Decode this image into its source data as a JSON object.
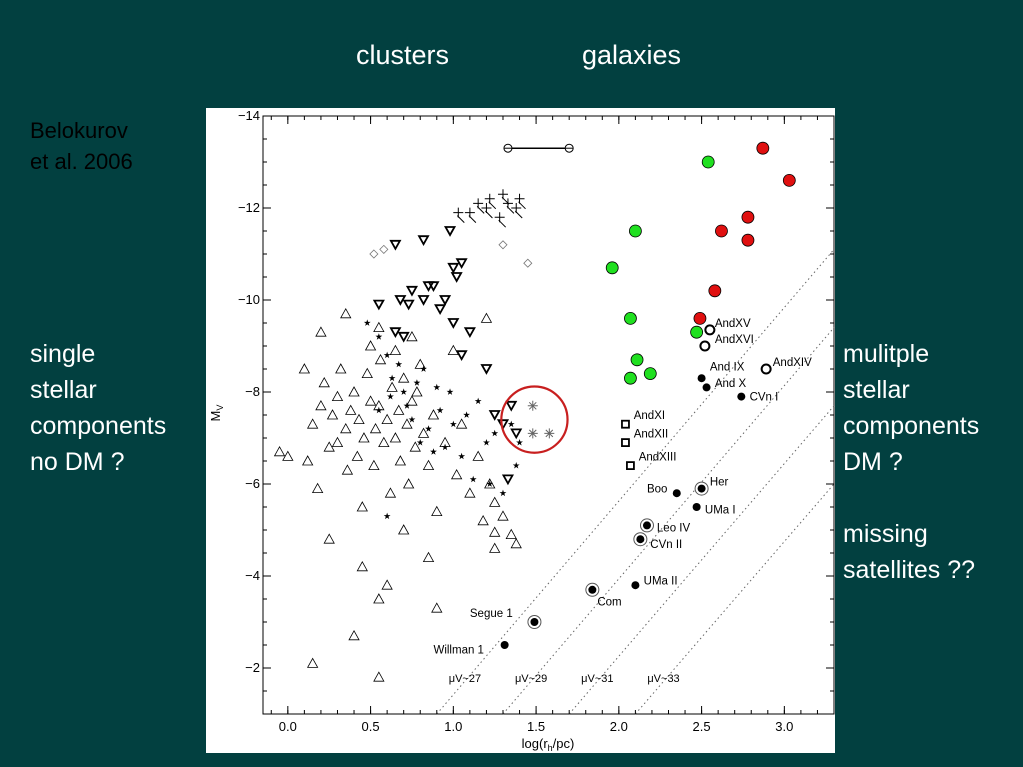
{
  "slide": {
    "headers": {
      "clusters": "clusters",
      "galaxies": "galaxies"
    },
    "citation": [
      "Belokurov",
      "et al. 2006"
    ],
    "left_note": [
      "single",
      "stellar",
      "components",
      "no DM ?"
    ],
    "right_note": [
      "mulitple",
      "stellar",
      "components",
      "DM ?",
      "",
      "missing",
      "satellites ??"
    ]
  },
  "chart_data": {
    "type": "scatter",
    "xlabel": "log(r_h/pc)",
    "ylabel": "M_V",
    "xlim": [
      -0.15,
      3.3
    ],
    "ylim": [
      -1.0,
      -14.0
    ],
    "x_ticks": [
      0.0,
      0.5,
      1.0,
      1.5,
      2.0,
      2.5,
      3.0
    ],
    "x_tick_labels": [
      "0.0",
      "0.5",
      "1.0",
      "1.5",
      "2.0",
      "2.5",
      "3.0"
    ],
    "y_ticks": [
      -2,
      -4,
      -6,
      -8,
      -10,
      -12,
      -14
    ],
    "y_tick_labels": [
      "−2",
      "−4",
      "−6",
      "−8",
      "−10",
      "−12",
      "−14"
    ],
    "colors": {
      "red": "#e01010",
      "green": "#20e020",
      "emphasis": "#c81f1f"
    },
    "surface_brightness_lines": [
      {
        "label": "μV~27",
        "points": [
          [
            0.9,
            -1.0
          ],
          [
            3.3,
            -11.1
          ]
        ]
      },
      {
        "label": "μV~29",
        "points": [
          [
            1.3,
            -1.0
          ],
          [
            3.3,
            -9.4
          ]
        ]
      },
      {
        "label": "μV~31",
        "points": [
          [
            1.7,
            -1.0
          ],
          [
            3.3,
            -7.7
          ]
        ]
      },
      {
        "label": "μV~33",
        "points": [
          [
            2.1,
            -1.0
          ],
          [
            3.3,
            -6.0
          ]
        ]
      }
    ],
    "sb_labels": [
      {
        "text": "μV~27",
        "x": 1.07,
        "y": -1.7
      },
      {
        "text": "μV~29",
        "x": 1.47,
        "y": -1.7
      },
      {
        "text": "μV~31",
        "x": 1.87,
        "y": -1.7
      },
      {
        "text": "μV~33",
        "x": 2.27,
        "y": -1.7
      }
    ],
    "series": [
      {
        "marker": "triangle",
        "points": [
          [
            -0.05,
            -6.7
          ],
          [
            0.0,
            -6.6
          ],
          [
            0.12,
            -6.5
          ],
          [
            0.15,
            -7.3
          ],
          [
            0.18,
            -5.9
          ],
          [
            0.2,
            -7.7
          ],
          [
            0.22,
            -8.2
          ],
          [
            0.25,
            -6.8
          ],
          [
            0.27,
            -7.5
          ],
          [
            0.3,
            -6.9
          ],
          [
            0.3,
            -7.9
          ],
          [
            0.32,
            -8.5
          ],
          [
            0.35,
            -7.2
          ],
          [
            0.36,
            -6.3
          ],
          [
            0.38,
            -7.6
          ],
          [
            0.4,
            -8.0
          ],
          [
            0.42,
            -6.6
          ],
          [
            0.43,
            -7.4
          ],
          [
            0.45,
            -5.5
          ],
          [
            0.46,
            -7.0
          ],
          [
            0.48,
            -8.4
          ],
          [
            0.5,
            -7.8
          ],
          [
            0.52,
            -6.4
          ],
          [
            0.53,
            -7.2
          ],
          [
            0.55,
            -7.7
          ],
          [
            0.56,
            -8.7
          ],
          [
            0.58,
            -6.9
          ],
          [
            0.6,
            -7.4
          ],
          [
            0.62,
            -5.8
          ],
          [
            0.63,
            -8.1
          ],
          [
            0.65,
            -7.0
          ],
          [
            0.67,
            -7.6
          ],
          [
            0.68,
            -6.5
          ],
          [
            0.7,
            -8.3
          ],
          [
            0.72,
            -7.3
          ],
          [
            0.73,
            -6.0
          ],
          [
            0.75,
            -7.8
          ],
          [
            0.77,
            -6.8
          ],
          [
            0.8,
            -8.6
          ],
          [
            0.82,
            -7.1
          ],
          [
            0.85,
            -6.4
          ],
          [
            0.88,
            -7.5
          ],
          [
            0.9,
            -5.4
          ],
          [
            0.95,
            -6.9
          ],
          [
            1.0,
            -8.9
          ],
          [
            1.02,
            -6.2
          ],
          [
            1.05,
            -7.3
          ],
          [
            1.1,
            -5.8
          ],
          [
            1.15,
            -6.6
          ],
          [
            1.18,
            -5.2
          ],
          [
            1.22,
            -6.0
          ],
          [
            1.25,
            -5.6
          ],
          [
            1.3,
            -5.3
          ],
          [
            1.35,
            -4.9
          ],
          [
            1.38,
            -4.7
          ],
          [
            0.1,
            -8.5
          ],
          [
            0.2,
            -9.3
          ],
          [
            0.35,
            -9.7
          ],
          [
            0.5,
            -9.0
          ],
          [
            0.55,
            -9.4
          ],
          [
            0.65,
            -8.9
          ],
          [
            0.75,
            -9.2
          ],
          [
            1.2,
            -9.6
          ],
          [
            0.45,
            -4.2
          ],
          [
            0.55,
            -3.5
          ],
          [
            0.85,
            -4.4
          ],
          [
            0.9,
            -3.3
          ],
          [
            0.4,
            -2.7
          ],
          [
            0.15,
            -2.1
          ],
          [
            0.55,
            -1.8
          ],
          [
            1.25,
            -4.6
          ],
          [
            1.25,
            -4.95
          ],
          [
            0.7,
            -5.0
          ],
          [
            0.25,
            -4.8
          ],
          [
            0.6,
            -3.8
          ],
          [
            0.78,
            -8.0
          ]
        ]
      },
      {
        "marker": "inverted-triangle",
        "points": [
          [
            0.65,
            -11.2
          ],
          [
            0.82,
            -11.3
          ],
          [
            0.98,
            -11.5
          ],
          [
            1.0,
            -10.7
          ],
          [
            1.02,
            -10.5
          ],
          [
            1.05,
            -10.8
          ],
          [
            0.55,
            -9.9
          ],
          [
            0.68,
            -10.0
          ],
          [
            0.73,
            -9.9
          ],
          [
            0.75,
            -10.2
          ],
          [
            0.82,
            -10.0
          ],
          [
            0.88,
            -10.3
          ],
          [
            0.95,
            -10.0
          ],
          [
            0.92,
            -9.8
          ],
          [
            1.0,
            -9.5
          ],
          [
            1.1,
            -9.3
          ],
          [
            0.65,
            -9.3
          ],
          [
            0.7,
            -9.2
          ],
          [
            1.05,
            -8.8
          ],
          [
            1.2,
            -8.5
          ],
          [
            1.3,
            -7.3
          ],
          [
            1.25,
            -7.5
          ],
          [
            1.35,
            -7.7
          ],
          [
            1.33,
            -6.1
          ],
          [
            1.38,
            -7.1
          ],
          [
            0.85,
            -10.3
          ]
        ]
      },
      {
        "marker": "star",
        "points": [
          [
            0.48,
            -9.5
          ],
          [
            0.55,
            -9.2
          ],
          [
            0.6,
            -8.8
          ],
          [
            0.63,
            -8.3
          ],
          [
            0.67,
            -8.6
          ],
          [
            0.7,
            -8.0
          ],
          [
            0.72,
            -7.7
          ],
          [
            0.75,
            -7.4
          ],
          [
            0.78,
            -8.2
          ],
          [
            0.8,
            -6.9
          ],
          [
            0.82,
            -8.5
          ],
          [
            0.85,
            -7.2
          ],
          [
            0.88,
            -6.7
          ],
          [
            0.9,
            -8.1
          ],
          [
            0.92,
            -7.6
          ],
          [
            0.95,
            -6.8
          ],
          [
            0.98,
            -8.0
          ],
          [
            1.0,
            -7.3
          ],
          [
            1.05,
            -6.6
          ],
          [
            1.08,
            -7.5
          ],
          [
            1.12,
            -6.1
          ],
          [
            1.15,
            -7.8
          ],
          [
            1.2,
            -6.9
          ],
          [
            1.22,
            -6.0
          ],
          [
            1.25,
            -7.1
          ],
          [
            1.3,
            -5.8
          ],
          [
            1.35,
            -7.3
          ],
          [
            1.38,
            -6.4
          ],
          [
            1.4,
            -6.9
          ],
          [
            0.6,
            -5.3
          ],
          [
            0.55,
            -7.6
          ],
          [
            0.62,
            -7.9
          ]
        ]
      },
      {
        "marker": "diamond",
        "points": [
          [
            0.52,
            -11.0
          ],
          [
            0.58,
            -11.1
          ],
          [
            1.3,
            -11.2
          ],
          [
            1.45,
            -10.8
          ]
        ]
      },
      {
        "marker": "cross",
        "points": [
          [
            1.03,
            -11.9
          ],
          [
            1.1,
            -11.9
          ],
          [
            1.15,
            -12.1
          ],
          [
            1.2,
            -12.0
          ],
          [
            1.22,
            -12.2
          ],
          [
            1.3,
            -12.3
          ],
          [
            1.33,
            -12.1
          ],
          [
            1.38,
            -12.0
          ],
          [
            1.4,
            -12.2
          ],
          [
            1.28,
            -11.8
          ]
        ]
      },
      {
        "marker": "asterisk",
        "points": [
          [
            1.48,
            -7.7
          ],
          [
            1.48,
            -7.1
          ],
          [
            1.58,
            -7.1
          ]
        ]
      },
      {
        "marker": "circle-red",
        "points": [
          [
            2.87,
            -13.3
          ],
          [
            3.03,
            -12.6
          ],
          [
            2.78,
            -11.8
          ],
          [
            2.62,
            -11.5
          ],
          [
            2.78,
            -11.3
          ],
          [
            2.58,
            -10.2
          ],
          [
            2.49,
            -9.6
          ]
        ]
      },
      {
        "marker": "circle-green",
        "points": [
          [
            2.54,
            -13.0
          ],
          [
            2.1,
            -11.5
          ],
          [
            1.96,
            -10.7
          ],
          [
            2.07,
            -9.6
          ],
          [
            2.47,
            -9.3
          ],
          [
            2.11,
            -8.7
          ],
          [
            2.19,
            -8.4
          ],
          [
            2.07,
            -8.3
          ]
        ]
      },
      {
        "marker": "circle-open",
        "points": [
          [
            2.55,
            -9.35
          ],
          [
            2.52,
            -9.0
          ],
          [
            2.89,
            -8.5
          ]
        ]
      },
      {
        "marker": "square-open",
        "points": [
          [
            2.04,
            -7.3
          ],
          [
            2.04,
            -6.9
          ],
          [
            2.07,
            -6.4
          ]
        ]
      },
      {
        "marker": "circle-filled",
        "points": [
          [
            2.5,
            -8.3
          ],
          [
            2.53,
            -8.1
          ],
          [
            2.74,
            -7.9
          ],
          [
            2.35,
            -5.8
          ],
          [
            2.47,
            -5.5
          ],
          [
            1.31,
            -2.5
          ],
          [
            2.1,
            -3.8
          ]
        ]
      },
      {
        "marker": "circle-filled-ringed",
        "points": [
          [
            2.5,
            -5.9
          ],
          [
            2.17,
            -5.1
          ],
          [
            2.13,
            -4.8
          ],
          [
            1.84,
            -3.7
          ],
          [
            1.49,
            -3.0
          ]
        ]
      }
    ],
    "error_bar": {
      "x": [
        1.33,
        1.7
      ],
      "y": -13.3
    },
    "point_labels": [
      {
        "text": "AndXV",
        "x": 2.58,
        "y": -9.5
      },
      {
        "text": "AndXVI",
        "x": 2.58,
        "y": -9.15
      },
      {
        "text": "AndXIV",
        "x": 2.93,
        "y": -8.65
      },
      {
        "text": "And IX",
        "x": 2.55,
        "y": -8.55
      },
      {
        "text": "And X",
        "x": 2.58,
        "y": -8.2
      },
      {
        "text": "CVn I",
        "x": 2.79,
        "y": -7.9
      },
      {
        "text": "AndXI",
        "x": 2.09,
        "y": -7.5
      },
      {
        "text": "AndXII",
        "x": 2.09,
        "y": -7.1
      },
      {
        "text": "AndXIII",
        "x": 2.12,
        "y": -6.6
      },
      {
        "text": "Boo",
        "x": 2.17,
        "y": -5.9
      },
      {
        "text": "Her",
        "x": 2.55,
        "y": -6.05
      },
      {
        "text": "UMa I",
        "x": 2.52,
        "y": -5.45
      },
      {
        "text": "Leo IV",
        "x": 2.23,
        "y": -5.05
      },
      {
        "text": "CVn II",
        "x": 2.19,
        "y": -4.7
      },
      {
        "text": "UMa II",
        "x": 2.15,
        "y": -3.9
      },
      {
        "text": "Com",
        "x": 1.87,
        "y": -3.45
      },
      {
        "text": "Segue 1",
        "x": 1.1,
        "y": -3.2
      },
      {
        "text": "Willman 1",
        "x": 0.88,
        "y": -2.4
      }
    ],
    "highlight_circle": {
      "cx": 1.49,
      "cy": -7.4,
      "rx": 0.2,
      "ry": 0.72
    }
  }
}
